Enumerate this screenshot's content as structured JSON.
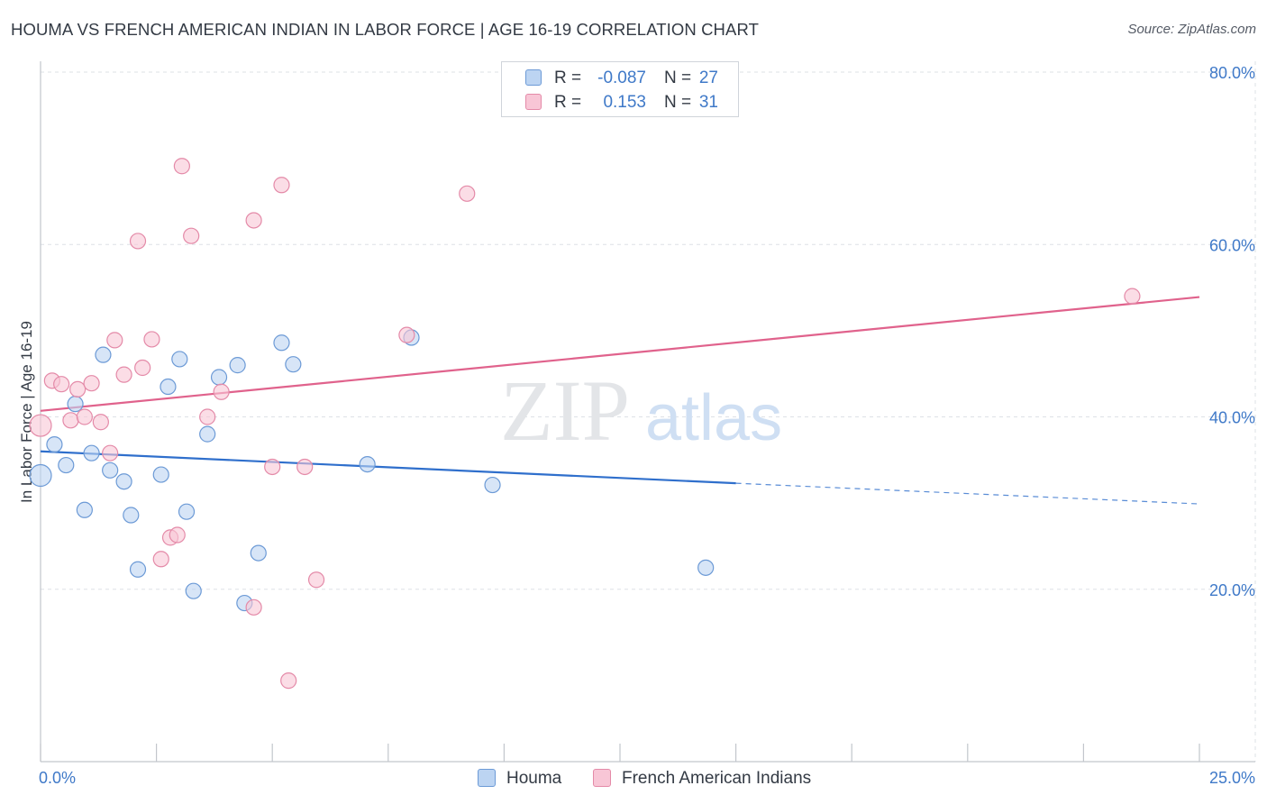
{
  "header": {
    "title": "HOUMA VS FRENCH AMERICAN INDIAN IN LABOR FORCE | AGE 16-19 CORRELATION CHART",
    "source": "Source: ZipAtlas.com"
  },
  "watermark": {
    "zip": "ZIP",
    "atlas": "atlas"
  },
  "legend": {
    "rows": [
      {
        "r_label": "R =",
        "r_value": "-0.087",
        "n_label": "N =",
        "n_value": "27"
      },
      {
        "r_label": "R =",
        "r_value": "0.153",
        "n_label": "N =",
        "n_value": "31"
      }
    ]
  },
  "colors": {
    "houma_fill": "#bcd4f2",
    "houma_stroke": "#6c9ad6",
    "houma_line": "#2f6fcc",
    "french_fill": "#f8c6d6",
    "french_stroke": "#e48aa8",
    "french_line": "#e0628c",
    "tick_text": "#3f79c8",
    "grid": "#dde1e6"
  },
  "chart_data": {
    "type": "scatter",
    "title": "HOUMA VS FRENCH AMERICAN INDIAN IN LABOR FORCE | AGE 16-19 CORRELATION CHART",
    "xlabel": "",
    "ylabel": "In Labor Force | Age 16-19",
    "xlim": [
      0,
      25
    ],
    "ylim": [
      0,
      80
    ],
    "x_tick_labels": [
      "0.0%",
      "25.0%"
    ],
    "y_ticks": [
      20,
      40,
      60,
      80
    ],
    "y_tick_labels": [
      "20.0%",
      "40.0%",
      "60.0%",
      "80.0%"
    ],
    "grid": true,
    "legend_position": "bottom",
    "series": [
      {
        "name": "Houma",
        "r": -0.087,
        "n": 27,
        "trend": {
          "x": [
            0,
            15
          ],
          "y": [
            36.0,
            32.3
          ],
          "dashed_to": {
            "x": 25,
            "y": 29.9
          }
        },
        "points": [
          {
            "x": 0.0,
            "y": 33.2
          },
          {
            "x": 0.3,
            "y": 36.8
          },
          {
            "x": 0.55,
            "y": 34.4
          },
          {
            "x": 0.75,
            "y": 41.5
          },
          {
            "x": 0.95,
            "y": 29.2
          },
          {
            "x": 1.1,
            "y": 35.8
          },
          {
            "x": 1.35,
            "y": 47.2
          },
          {
            "x": 1.5,
            "y": 33.8
          },
          {
            "x": 1.8,
            "y": 32.5
          },
          {
            "x": 1.95,
            "y": 28.6
          },
          {
            "x": 2.1,
            "y": 22.3
          },
          {
            "x": 2.6,
            "y": 33.3
          },
          {
            "x": 2.75,
            "y": 43.5
          },
          {
            "x": 3.0,
            "y": 46.7
          },
          {
            "x": 3.15,
            "y": 29.0
          },
          {
            "x": 3.3,
            "y": 19.8
          },
          {
            "x": 3.6,
            "y": 38.0
          },
          {
            "x": 3.85,
            "y": 44.6
          },
          {
            "x": 4.25,
            "y": 46.0
          },
          {
            "x": 4.4,
            "y": 18.4
          },
          {
            "x": 4.7,
            "y": 24.2
          },
          {
            "x": 5.2,
            "y": 48.6
          },
          {
            "x": 5.45,
            "y": 46.1
          },
          {
            "x": 7.05,
            "y": 34.5
          },
          {
            "x": 8.0,
            "y": 49.2
          },
          {
            "x": 9.75,
            "y": 32.1
          },
          {
            "x": 14.35,
            "y": 22.5
          }
        ]
      },
      {
        "name": "French American Indians",
        "r": 0.153,
        "n": 31,
        "trend": {
          "x": [
            0,
            25
          ],
          "y": [
            40.7,
            53.9
          ]
        },
        "points": [
          {
            "x": 0.0,
            "y": 39.0
          },
          {
            "x": 0.25,
            "y": 44.2
          },
          {
            "x": 0.45,
            "y": 43.8
          },
          {
            "x": 0.65,
            "y": 39.6
          },
          {
            "x": 0.8,
            "y": 43.2
          },
          {
            "x": 0.95,
            "y": 40.0
          },
          {
            "x": 1.1,
            "y": 43.9
          },
          {
            "x": 1.3,
            "y": 39.4
          },
          {
            "x": 1.5,
            "y": 35.8
          },
          {
            "x": 1.6,
            "y": 48.9
          },
          {
            "x": 1.8,
            "y": 44.9
          },
          {
            "x": 2.1,
            "y": 60.4
          },
          {
            "x": 2.2,
            "y": 45.7
          },
          {
            "x": 2.4,
            "y": 49.0
          },
          {
            "x": 2.6,
            "y": 23.5
          },
          {
            "x": 2.8,
            "y": 26.0
          },
          {
            "x": 2.95,
            "y": 26.3
          },
          {
            "x": 3.05,
            "y": 69.1
          },
          {
            "x": 3.25,
            "y": 61.0
          },
          {
            "x": 3.6,
            "y": 40.0
          },
          {
            "x": 3.9,
            "y": 42.9
          },
          {
            "x": 4.6,
            "y": 17.9
          },
          {
            "x": 4.6,
            "y": 62.8
          },
          {
            "x": 5.0,
            "y": 34.2
          },
          {
            "x": 5.2,
            "y": 66.9
          },
          {
            "x": 5.35,
            "y": 9.4
          },
          {
            "x": 5.7,
            "y": 34.2
          },
          {
            "x": 5.95,
            "y": 21.1
          },
          {
            "x": 7.9,
            "y": 49.5
          },
          {
            "x": 9.2,
            "y": 65.9
          },
          {
            "x": 23.55,
            "y": 54.0
          }
        ]
      }
    ]
  }
}
